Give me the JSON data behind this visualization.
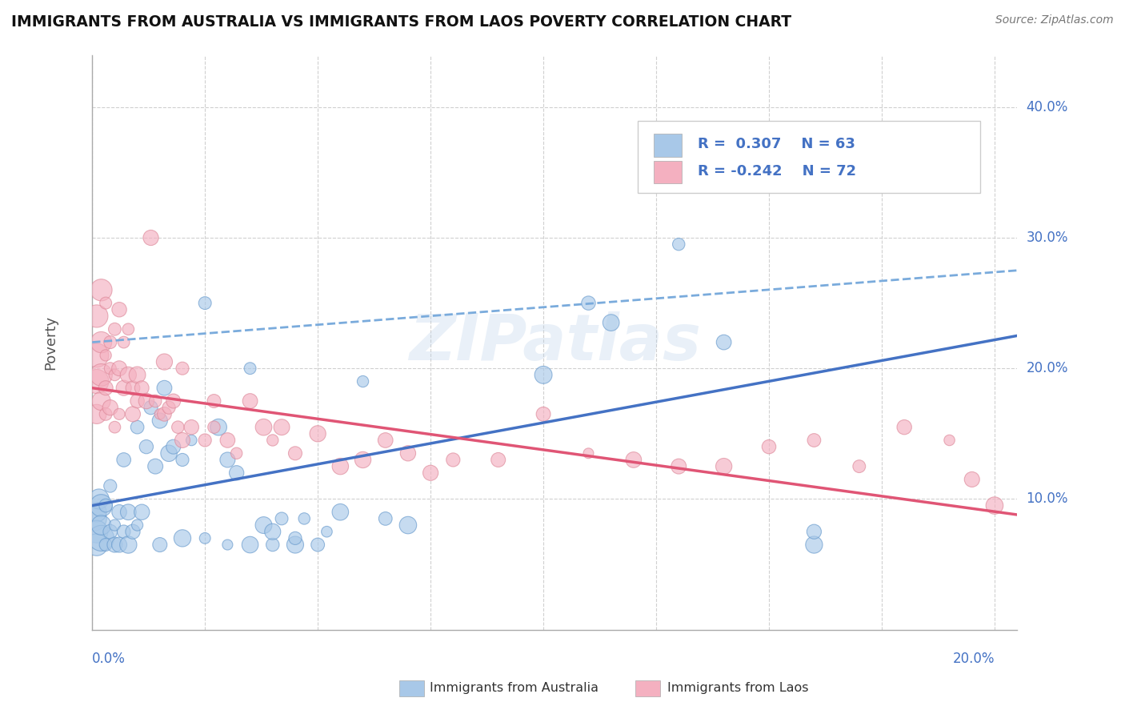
{
  "title": "IMMIGRANTS FROM AUSTRALIA VS IMMIGRANTS FROM LAOS POVERTY CORRELATION CHART",
  "source": "Source: ZipAtlas.com",
  "watermark": "ZIPatlas",
  "ylabel": "Poverty",
  "xlim": [
    0.0,
    0.205
  ],
  "ylim": [
    0.0,
    0.44
  ],
  "australia_color": "#a8c8e8",
  "australia_edge_color": "#6699cc",
  "laos_color": "#f4b0c0",
  "laos_edge_color": "#dd8899",
  "australia_line_color": "#4472c4",
  "laos_line_color": "#e05575",
  "dashed_line_color": "#7aabdc",
  "grid_color": "#d0d0d0",
  "ytick_vals": [
    0.1,
    0.2,
    0.3,
    0.4
  ],
  "ytick_labels": [
    "10.0%",
    "20.0%",
    "30.0%",
    "40.0%"
  ],
  "legend_bottom": [
    "Immigrants from Australia",
    "Immigrants from Laos"
  ],
  "australia_line": {
    "x0": 0.0,
    "x1": 0.205,
    "y0": 0.095,
    "y1": 0.225
  },
  "laos_line": {
    "x0": 0.0,
    "x1": 0.205,
    "y0": 0.185,
    "y1": 0.088
  },
  "dashed_line": {
    "x0": 0.0,
    "x1": 0.205,
    "y0": 0.22,
    "y1": 0.275
  },
  "australia_scatter": [
    [
      0.0005,
      0.085
    ],
    [
      0.001,
      0.09
    ],
    [
      0.001,
      0.075
    ],
    [
      0.0015,
      0.1
    ],
    [
      0.001,
      0.065
    ],
    [
      0.002,
      0.095
    ],
    [
      0.002,
      0.07
    ],
    [
      0.002,
      0.08
    ],
    [
      0.003,
      0.095
    ],
    [
      0.003,
      0.065
    ],
    [
      0.004,
      0.075
    ],
    [
      0.004,
      0.11
    ],
    [
      0.005,
      0.08
    ],
    [
      0.005,
      0.065
    ],
    [
      0.006,
      0.09
    ],
    [
      0.006,
      0.065
    ],
    [
      0.007,
      0.075
    ],
    [
      0.007,
      0.13
    ],
    [
      0.008,
      0.065
    ],
    [
      0.008,
      0.09
    ],
    [
      0.009,
      0.075
    ],
    [
      0.01,
      0.08
    ],
    [
      0.01,
      0.155
    ],
    [
      0.011,
      0.09
    ],
    [
      0.012,
      0.14
    ],
    [
      0.013,
      0.17
    ],
    [
      0.014,
      0.125
    ],
    [
      0.015,
      0.065
    ],
    [
      0.015,
      0.16
    ],
    [
      0.016,
      0.185
    ],
    [
      0.017,
      0.135
    ],
    [
      0.018,
      0.14
    ],
    [
      0.02,
      0.07
    ],
    [
      0.02,
      0.13
    ],
    [
      0.022,
      0.145
    ],
    [
      0.025,
      0.25
    ],
    [
      0.025,
      0.07
    ],
    [
      0.028,
      0.155
    ],
    [
      0.03,
      0.065
    ],
    [
      0.03,
      0.13
    ],
    [
      0.032,
      0.12
    ],
    [
      0.035,
      0.065
    ],
    [
      0.035,
      0.2
    ],
    [
      0.038,
      0.08
    ],
    [
      0.04,
      0.065
    ],
    [
      0.04,
      0.075
    ],
    [
      0.042,
      0.085
    ],
    [
      0.045,
      0.065
    ],
    [
      0.045,
      0.07
    ],
    [
      0.047,
      0.085
    ],
    [
      0.05,
      0.065
    ],
    [
      0.052,
      0.075
    ],
    [
      0.055,
      0.09
    ],
    [
      0.06,
      0.19
    ],
    [
      0.065,
      0.085
    ],
    [
      0.07,
      0.08
    ],
    [
      0.1,
      0.195
    ],
    [
      0.11,
      0.25
    ],
    [
      0.115,
      0.235
    ],
    [
      0.13,
      0.295
    ],
    [
      0.14,
      0.22
    ],
    [
      0.16,
      0.065
    ],
    [
      0.16,
      0.075
    ]
  ],
  "laos_scatter": [
    [
      0.001,
      0.19
    ],
    [
      0.001,
      0.21
    ],
    [
      0.001,
      0.165
    ],
    [
      0.001,
      0.24
    ],
    [
      0.002,
      0.22
    ],
    [
      0.002,
      0.195
    ],
    [
      0.002,
      0.175
    ],
    [
      0.002,
      0.26
    ],
    [
      0.003,
      0.21
    ],
    [
      0.003,
      0.185
    ],
    [
      0.003,
      0.165
    ],
    [
      0.003,
      0.25
    ],
    [
      0.004,
      0.22
    ],
    [
      0.004,
      0.2
    ],
    [
      0.004,
      0.17
    ],
    [
      0.005,
      0.23
    ],
    [
      0.005,
      0.195
    ],
    [
      0.005,
      0.155
    ],
    [
      0.006,
      0.245
    ],
    [
      0.006,
      0.2
    ],
    [
      0.006,
      0.165
    ],
    [
      0.007,
      0.22
    ],
    [
      0.007,
      0.185
    ],
    [
      0.008,
      0.23
    ],
    [
      0.008,
      0.195
    ],
    [
      0.009,
      0.185
    ],
    [
      0.009,
      0.165
    ],
    [
      0.01,
      0.195
    ],
    [
      0.01,
      0.175
    ],
    [
      0.011,
      0.185
    ],
    [
      0.012,
      0.175
    ],
    [
      0.013,
      0.3
    ],
    [
      0.014,
      0.175
    ],
    [
      0.015,
      0.165
    ],
    [
      0.016,
      0.205
    ],
    [
      0.016,
      0.165
    ],
    [
      0.017,
      0.17
    ],
    [
      0.018,
      0.175
    ],
    [
      0.019,
      0.155
    ],
    [
      0.02,
      0.2
    ],
    [
      0.02,
      0.145
    ],
    [
      0.022,
      0.155
    ],
    [
      0.025,
      0.145
    ],
    [
      0.027,
      0.175
    ],
    [
      0.027,
      0.155
    ],
    [
      0.03,
      0.145
    ],
    [
      0.032,
      0.135
    ],
    [
      0.035,
      0.175
    ],
    [
      0.038,
      0.155
    ],
    [
      0.04,
      0.145
    ],
    [
      0.042,
      0.155
    ],
    [
      0.045,
      0.135
    ],
    [
      0.05,
      0.15
    ],
    [
      0.055,
      0.125
    ],
    [
      0.06,
      0.13
    ],
    [
      0.065,
      0.145
    ],
    [
      0.07,
      0.135
    ],
    [
      0.075,
      0.12
    ],
    [
      0.08,
      0.13
    ],
    [
      0.09,
      0.13
    ],
    [
      0.1,
      0.165
    ],
    [
      0.11,
      0.135
    ],
    [
      0.12,
      0.13
    ],
    [
      0.13,
      0.125
    ],
    [
      0.14,
      0.125
    ],
    [
      0.15,
      0.14
    ],
    [
      0.16,
      0.145
    ],
    [
      0.17,
      0.125
    ],
    [
      0.18,
      0.155
    ],
    [
      0.19,
      0.145
    ],
    [
      0.195,
      0.115
    ],
    [
      0.2,
      0.095
    ]
  ]
}
